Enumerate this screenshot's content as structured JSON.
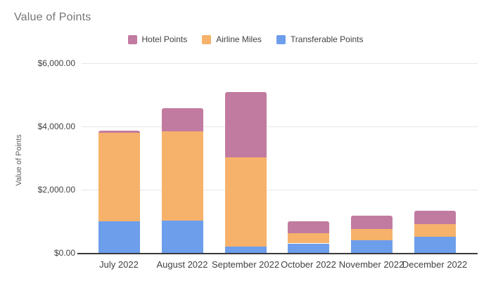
{
  "title": "Value of Points",
  "legend": [
    {
      "label": "Hotel Points",
      "color": "#c27ba0"
    },
    {
      "label": "Airline Miles",
      "color": "#f6b26b"
    },
    {
      "label": "Transferable Points",
      "color": "#6d9eeb"
    }
  ],
  "y_axis": {
    "title": "Value of Points",
    "ticks": [
      "$6,000.00",
      "$4,000.00",
      "$2,000.00",
      "$0.00"
    ]
  },
  "chart_data": {
    "type": "bar",
    "stacked": true,
    "title": "Value of Points",
    "ylabel": "Value of Points",
    "ylim": [
      0,
      6000
    ],
    "grid": true,
    "legend_position": "top",
    "categories": [
      "July 2022",
      "August 2022",
      "September 2022",
      "October 2022",
      "November 2022",
      "December 2022"
    ],
    "series": [
      {
        "name": "Transferable Points",
        "color": "#6d9eeb",
        "values": [
          1000,
          1030,
          190,
          300,
          390,
          510
        ]
      },
      {
        "name": "Airline Miles",
        "color": "#f6b26b",
        "values": [
          2800,
          2810,
          2830,
          315,
          360,
          400
        ]
      },
      {
        "name": "Hotel Points",
        "color": "#c27ba0",
        "values": [
          60,
          730,
          2080,
          380,
          425,
          425
        ]
      }
    ]
  }
}
